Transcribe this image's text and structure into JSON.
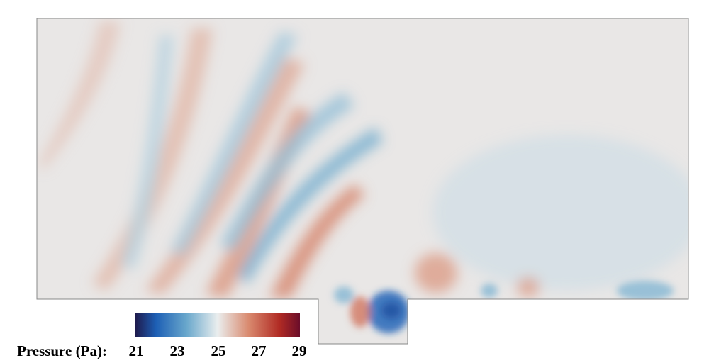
{
  "chart_data": {
    "type": "heatmap",
    "title": "",
    "subtitle": "",
    "colorbar": {
      "label": "Pressure (Pa):",
      "min": 21,
      "max": 29,
      "ticks": [
        21,
        23,
        25,
        27,
        29
      ],
      "tick_labels": [
        "21",
        "23",
        "25",
        "27",
        "29"
      ],
      "orientation": "horizontal",
      "placement": "bottom-left",
      "colormap": [
        {
          "value": 21,
          "color": "#1e1a4d"
        },
        {
          "value": 22,
          "color": "#1d5fb5"
        },
        {
          "value": 23.5,
          "color": "#6aa8cc"
        },
        {
          "value": 25,
          "color": "#eaeeee"
        },
        {
          "value": 26.5,
          "color": "#d98a6f"
        },
        {
          "value": 28,
          "color": "#b12b24"
        },
        {
          "value": 29,
          "color": "#6b0d2a"
        }
      ]
    },
    "field_background_value": 25.1,
    "field_features": [
      {
        "kind": "wave-crest",
        "value": 25.6
      },
      {
        "kind": "wave-crest",
        "value": 25.8
      },
      {
        "kind": "wave-crest",
        "value": 26.0
      },
      {
        "kind": "wave-crest",
        "value": 26.3
      },
      {
        "kind": "wave-crest",
        "value": 26.6
      },
      {
        "kind": "wave-trough",
        "value": 24.4
      },
      {
        "kind": "wave-trough",
        "value": 24.2
      },
      {
        "kind": "wave-trough",
        "value": 24.0
      },
      {
        "kind": "wave-trough",
        "value": 23.6
      },
      {
        "kind": "region-low",
        "value": 24.6
      },
      {
        "kind": "cavity-vortex-low",
        "value": 22.0
      },
      {
        "kind": "cavity-vortex-high",
        "value": 26.8
      },
      {
        "kind": "edge-vortex-low",
        "value": 23.8
      },
      {
        "kind": "wake-high",
        "value": 26.2
      }
    ],
    "grid": false,
    "xlabel": "",
    "ylabel": ""
  }
}
